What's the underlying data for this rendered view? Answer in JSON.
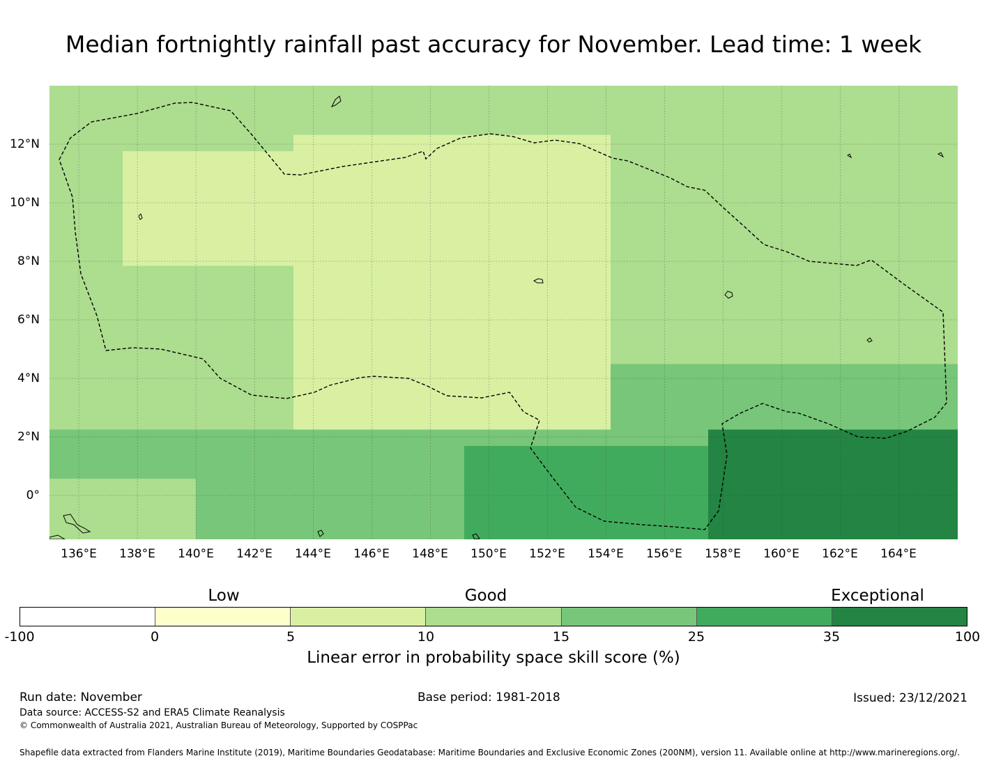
{
  "title": "Median fortnightly rainfall past accuracy for November. Lead time: 1 week",
  "map": {
    "x_ticks": [
      "136°E",
      "138°E",
      "140°E",
      "142°E",
      "144°E",
      "146°E",
      "148°E",
      "150°E",
      "152°E",
      "154°E",
      "156°E",
      "158°E",
      "160°E",
      "162°E",
      "164°E"
    ],
    "y_ticks": [
      "12°N",
      "10°N",
      "8°N",
      "6°N",
      "4°N",
      "2°N",
      "0°"
    ],
    "lon_range": [
      135,
      166
    ],
    "lat_range": [
      -1.5,
      14
    ],
    "background_color": "#78c679",
    "grid_color": "#3a3a3a",
    "boundary_color": "#000000"
  },
  "colorbar": {
    "categories": [
      "Low",
      "Good",
      "Exceptional"
    ],
    "ticks": [
      "-100",
      "0",
      "5",
      "10",
      "15",
      "25",
      "35",
      "100"
    ],
    "colors": [
      "#ffffff",
      "#ffffcc",
      "#d9f0a3",
      "#addd8e",
      "#78c679",
      "#41ab5d",
      "#238443"
    ],
    "label": "Linear error in probability space skill score (%)"
  },
  "footer": {
    "run_date": "Run date: November",
    "base_period": "Base period: 1981-2018",
    "issued": "Issued: 23/12/2021",
    "data_source": "Data source: ACCESS-S2 and ERA5 Climate Reanalysis",
    "copyright": "© Commonwealth of Australia 2021, Australian Bureau of Meteorology, Supported by COSPPac",
    "shapefile_note": "Shapefile data extracted from Flanders Marine Institute (2019), Maritime Boundaries Geodatabase: Maritime Boundaries and Exclusive Economic Zones (200NM), version 11. Available online at http://www.marineregions.org/."
  }
}
